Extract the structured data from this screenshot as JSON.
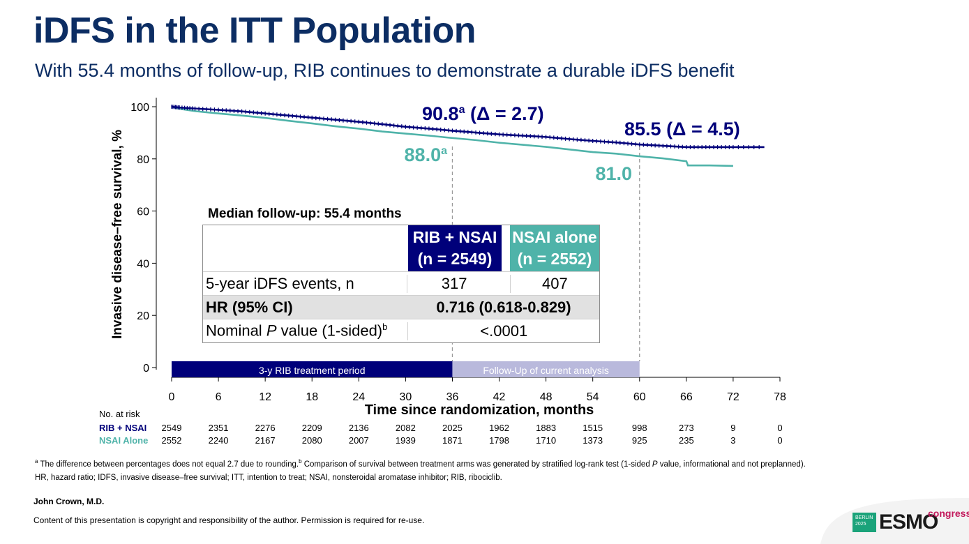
{
  "title": "iDFS in the ITT Population",
  "subtitle": "With 55.4 months of follow-up, RIB continues to demonstrate a durable iDFS benefit",
  "chart_data": {
    "type": "line",
    "xlabel": "Time since randomization, months",
    "ylabel": "Invasive disease–free survival, %",
    "x_ticks": [
      0,
      6,
      12,
      18,
      24,
      30,
      36,
      42,
      48,
      54,
      60,
      66,
      72,
      78
    ],
    "y_ticks": [
      0,
      20,
      40,
      60,
      80,
      100
    ],
    "xlim": [
      0,
      78
    ],
    "ylim": [
      0,
      100
    ],
    "series": [
      {
        "name": "RIB + NSAI",
        "color": "#00007a",
        "x": [
          0,
          1,
          3,
          6,
          9,
          12,
          15,
          18,
          21,
          24,
          27,
          30,
          33,
          36,
          39,
          42,
          45,
          48,
          51,
          54,
          57,
          60,
          63,
          66,
          69,
          72,
          76
        ],
        "y": [
          100,
          99.7,
          99.3,
          98.8,
          98.2,
          97.4,
          96.6,
          95.8,
          95.0,
          94.2,
          93.3,
          92.3,
          91.6,
          90.8,
          90.1,
          89.4,
          88.9,
          88.4,
          87.6,
          86.9,
          86.3,
          85.5,
          85.0,
          84.5,
          84.5,
          84.5,
          84.5
        ]
      },
      {
        "name": "NSAI alone",
        "color": "#4fb3a9",
        "x": [
          0,
          1,
          3,
          6,
          9,
          12,
          15,
          18,
          21,
          24,
          27,
          30,
          33,
          36,
          39,
          42,
          45,
          48,
          51,
          54,
          57,
          60,
          63,
          66,
          66.2,
          69,
          72
        ],
        "y": [
          100,
          99.2,
          98.3,
          97.4,
          96.6,
          95.7,
          94.6,
          93.6,
          92.5,
          91.6,
          90.5,
          89.7,
          88.9,
          88.0,
          87.2,
          86.2,
          85.4,
          84.6,
          83.6,
          82.6,
          82.0,
          81.0,
          80.2,
          79.1,
          77.5,
          77.5,
          77.3
        ]
      }
    ],
    "annotations": [
      {
        "text": "90.8",
        "sup": "a",
        "delta": "(Δ = 2.7)",
        "series": "RIB + NSAI",
        "x": 36,
        "y": 90.8
      },
      {
        "text": "85.5",
        "sup": "",
        "delta": "(Δ = 4.5)",
        "series": "RIB + NSAI",
        "x": 60,
        "y": 85.5
      },
      {
        "text": "88.0",
        "sup": "a",
        "series": "NSAI alone",
        "x": 36,
        "y": 88.0
      },
      {
        "text": "81.0",
        "sup": "",
        "series": "NSAI alone",
        "x": 60,
        "y": 81.0
      }
    ],
    "reference_lines_x": [
      36,
      60
    ],
    "periods": [
      {
        "label": "3-y RIB treatment period",
        "start": 0,
        "end": 36,
        "color": "#00007a"
      },
      {
        "label": "Follow-Up of current analysis",
        "start": 36,
        "end": 60,
        "color": "#b9b9dc"
      }
    ],
    "grid": false
  },
  "summary_table": {
    "median_label": "Median follow-up: 55.4 months",
    "col1_header": [
      "RIB + NSAI",
      "(n = 2549)"
    ],
    "col2_header": [
      "NSAI alone",
      "(n = 2552)"
    ],
    "rows": [
      {
        "label": "5-year iDFS events, n",
        "v1": "317",
        "v2": "407"
      },
      {
        "label": "HR (95% CI)",
        "span": "0.716 (0.618-0.829)"
      },
      {
        "label_pre": "Nominal ",
        "label_italic": "P",
        "label_post": " value (1-sided)",
        "label_sup": "b",
        "span": "<.0001"
      }
    ]
  },
  "risk_table": {
    "header": "No. at risk",
    "times": [
      0,
      6,
      12,
      18,
      24,
      30,
      36,
      42,
      48,
      54,
      60,
      66,
      72,
      78
    ],
    "rows": [
      {
        "label": "RIB + NSAI",
        "color": "#00007a",
        "values": [
          "2549",
          "2351",
          "2276",
          "2209",
          "2136",
          "2082",
          "2025",
          "1962",
          "1883",
          "1515",
          "998",
          "273",
          "9",
          "0"
        ]
      },
      {
        "label": "NSAI Alone",
        "color": "#4fb3a9",
        "values": [
          "2552",
          "2240",
          "2167",
          "2080",
          "2007",
          "1939",
          "1871",
          "1798",
          "1710",
          "1373",
          "925",
          "235",
          "3",
          "0"
        ]
      }
    ]
  },
  "footnotes": {
    "a_mark": "a",
    "a_text": " The difference between percentages does not equal 2.7 due to rounding.",
    "b_mark": "b",
    "b_text": " Comparison of survival between treatment arms was generated by stratified log-rank test (1-sided ",
    "b_italic": "P",
    "b_post": " value, informational and not preplanned).",
    "abbrev": "HR, hazard ratio; IDFS, invasive disease–free survival; ITT, intention to treat; NSAI, nonsteroidal aromatase inhibitor; RIB, ribociclib."
  },
  "author": "John Crown, M.D.",
  "copyright": "Content of this presentation is copyright and responsibility of the author. Permission is required for re-use.",
  "logo": {
    "city": "BERLIN",
    "year": "2025",
    "brand": "ESMO",
    "suffix": "congress"
  }
}
